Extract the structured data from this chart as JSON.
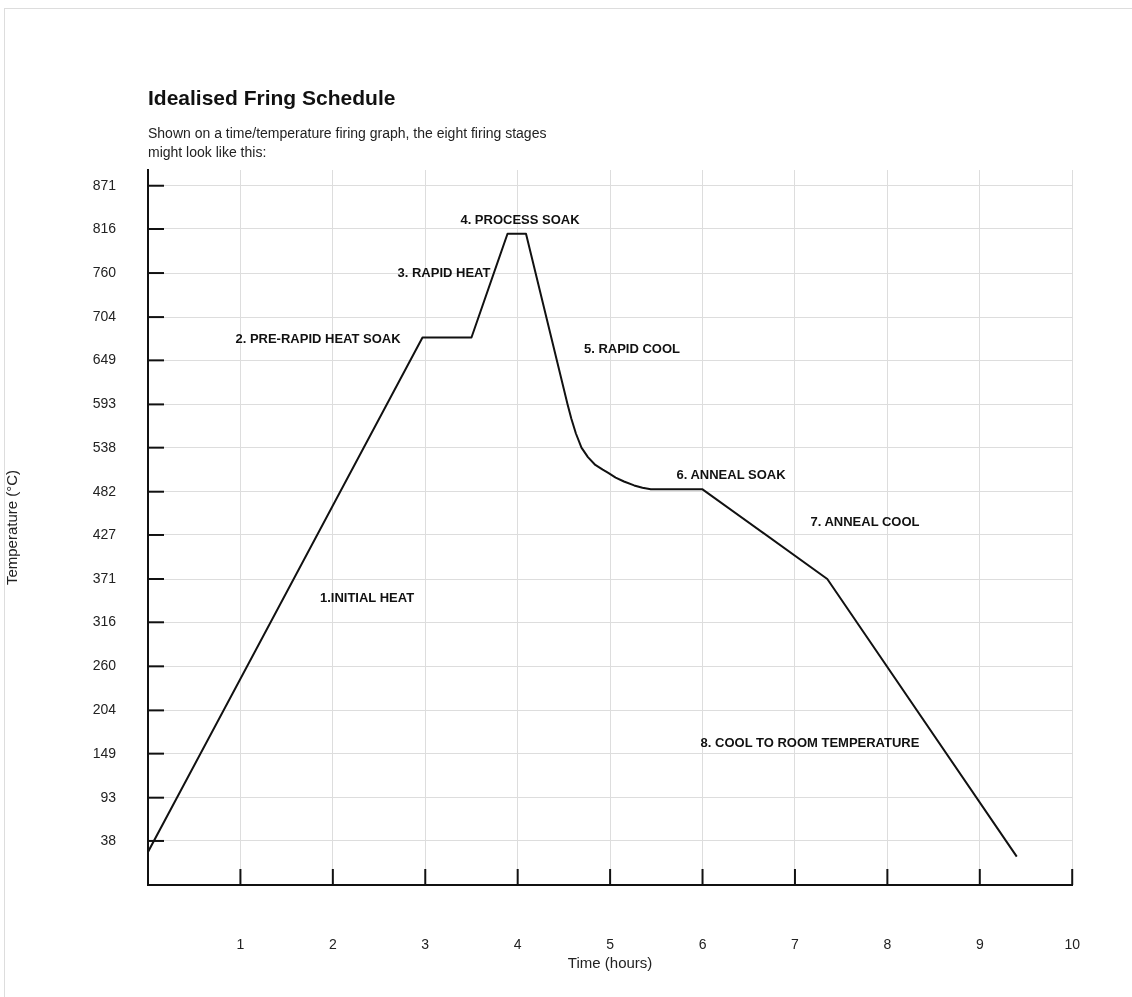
{
  "chart_data": {
    "type": "line",
    "title": "Idealised Fring Schedule",
    "subtitle": "Shown on a time/temperature firing graph, the eight firing stages might look like this:",
    "xlabel": "Time (hours)",
    "ylabel": "Temperature (°C)",
    "series": [
      {
        "color": "#111111",
        "x": [
          0,
          2.97,
          3.5,
          3.89,
          4.09,
          4.54,
          4.58,
          4.63,
          4.69,
          4.76,
          4.84,
          4.92,
          4.98,
          5.06,
          5.15,
          5.26,
          5.35,
          5.44,
          6.0,
          7.35,
          9.4
        ],
        "values": [
          24,
          678,
          678,
          810,
          810,
          593,
          575,
          556,
          538,
          526,
          516,
          510,
          506,
          500,
          495,
          490,
          487,
          485,
          485,
          371,
          18
        ]
      }
    ],
    "xlim": [
      0,
      10
    ],
    "xticks": [
      1,
      2,
      3,
      4,
      5,
      6,
      7,
      8,
      9,
      10
    ],
    "ylim": [
      -18,
      891
    ],
    "yticks": [
      38,
      93,
      149,
      204,
      260,
      316,
      371,
      427,
      482,
      538,
      593,
      649,
      704,
      760,
      816,
      871
    ],
    "grid": true,
    "legend": false,
    "marker": "none",
    "line_style": "solid",
    "annotations": [
      "1.INITIAL HEAT",
      "2. PRE-RAPID HEAT SOAK",
      "3. RAPID HEAT",
      "4. PROCESS SOAK",
      "5. RAPID COOL",
      "6. ANNEAL SOAK",
      "7. ANNEAL COOL",
      "8. COOL TO ROOM TEMPERATURE"
    ]
  }
}
